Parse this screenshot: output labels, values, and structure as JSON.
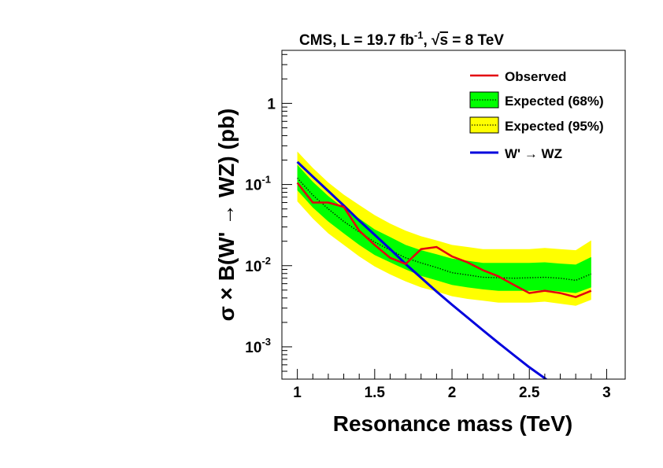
{
  "chart_data": {
    "type": "line",
    "title_parts": {
      "prefix": "CMS, L = 19.7 fb",
      "lumi_exp": "-1",
      "sep": ", ",
      "sqrt": "√",
      "sqrt_arg": "s",
      "suffix": " = 8 TeV"
    },
    "xlabel": "Resonance mass (TeV)",
    "ylabel_parts": {
      "a": "σ × B(W' ",
      "arrow": "→",
      "b": " WZ) (pb)"
    },
    "xlim": [
      0.9,
      3.12
    ],
    "ylim": [
      0.0004,
      4.5
    ],
    "y_scale": "log",
    "x_ticks": [
      {
        "value": 1,
        "label": "1"
      },
      {
        "value": 1.5,
        "label": "1.5"
      },
      {
        "value": 2,
        "label": "2"
      },
      {
        "value": 2.5,
        "label": "2.5"
      },
      {
        "value": 3,
        "label": "3"
      }
    ],
    "y_ticks": [
      {
        "value": 1,
        "label": "1",
        "base": "",
        "exp": ""
      },
      {
        "value": 0.1,
        "label": "",
        "base": "10",
        "exp": "-1"
      },
      {
        "value": 0.01,
        "label": "",
        "base": "10",
        "exp": "-2"
      },
      {
        "value": 0.001,
        "label": "",
        "base": "10",
        "exp": "-3"
      }
    ],
    "legend": {
      "placement": "top-right",
      "entries": [
        {
          "key": "observed",
          "label": "Observed"
        },
        {
          "key": "exp68",
          "label": "Expected (68%)"
        },
        {
          "key": "exp95",
          "label": "Expected (95%)"
        },
        {
          "key": "theory",
          "label_parts": {
            "a": "W' ",
            "arrow": "→",
            "b": " WZ"
          }
        }
      ]
    },
    "colors": {
      "observed": "#e3000f",
      "band68": "#00ff00",
      "band95": "#ffff00",
      "expected": "#000000",
      "theory": "#0000dd"
    },
    "x": [
      1.0,
      1.1,
      1.2,
      1.3,
      1.4,
      1.5,
      1.6,
      1.7,
      1.8,
      1.9,
      2.0,
      2.1,
      2.2,
      2.3,
      2.4,
      2.5,
      2.6,
      2.7,
      2.8,
      2.9
    ],
    "series": [
      {
        "name": "Observed",
        "key": "observed",
        "values": [
          0.105,
          0.06,
          0.06,
          0.053,
          0.027,
          0.018,
          0.0125,
          0.0105,
          0.016,
          0.017,
          0.013,
          0.011,
          0.0088,
          0.0074,
          0.0058,
          0.0046,
          0.0049,
          0.0046,
          0.0041,
          0.0049
        ]
      },
      {
        "name": "Expected (68%)",
        "key": "expected",
        "values": [
          0.12,
          0.074,
          0.05,
          0.035,
          0.026,
          0.0195,
          0.0155,
          0.0125,
          0.0108,
          0.0095,
          0.0082,
          0.0077,
          0.0072,
          0.0071,
          0.007,
          0.0071,
          0.0072,
          0.007,
          0.0066,
          0.0079
        ],
        "band68_lo": [
          0.085,
          0.052,
          0.035,
          0.025,
          0.018,
          0.0135,
          0.011,
          0.009,
          0.0075,
          0.0066,
          0.0058,
          0.0054,
          0.0051,
          0.0049,
          0.0049,
          0.0049,
          0.005,
          0.0048,
          0.0046,
          0.0054
        ],
        "band68_hi": [
          0.175,
          0.108,
          0.072,
          0.051,
          0.038,
          0.028,
          0.0225,
          0.018,
          0.0155,
          0.0138,
          0.0122,
          0.0115,
          0.0108,
          0.0108,
          0.0108,
          0.0108,
          0.011,
          0.0106,
          0.0103,
          0.0128
        ],
        "band95_lo": [
          0.062,
          0.038,
          0.025,
          0.018,
          0.013,
          0.0098,
          0.0078,
          0.0064,
          0.0054,
          0.0048,
          0.0042,
          0.0039,
          0.0037,
          0.0035,
          0.0035,
          0.0035,
          0.0036,
          0.0034,
          0.0032,
          0.0038
        ],
        "band95_hi": [
          0.255,
          0.16,
          0.106,
          0.075,
          0.056,
          0.042,
          0.033,
          0.027,
          0.023,
          0.0205,
          0.018,
          0.017,
          0.016,
          0.016,
          0.016,
          0.016,
          0.0165,
          0.016,
          0.0155,
          0.0205
        ]
      },
      {
        "name": "W' → WZ",
        "key": "theory",
        "x": [
          1.0,
          1.1,
          1.2,
          1.3,
          1.4,
          1.5,
          1.6,
          1.7,
          1.8,
          1.9,
          2.0,
          2.1,
          2.2,
          2.3,
          2.4,
          2.5,
          2.6,
          2.7,
          2.73
        ],
        "values": [
          0.19,
          0.125,
          0.083,
          0.055,
          0.036,
          0.024,
          0.016,
          0.0105,
          0.0071,
          0.0048,
          0.0033,
          0.0023,
          0.0016,
          0.00112,
          0.00079,
          0.00056,
          0.00041,
          0.00029,
          0.00026
        ]
      }
    ]
  }
}
